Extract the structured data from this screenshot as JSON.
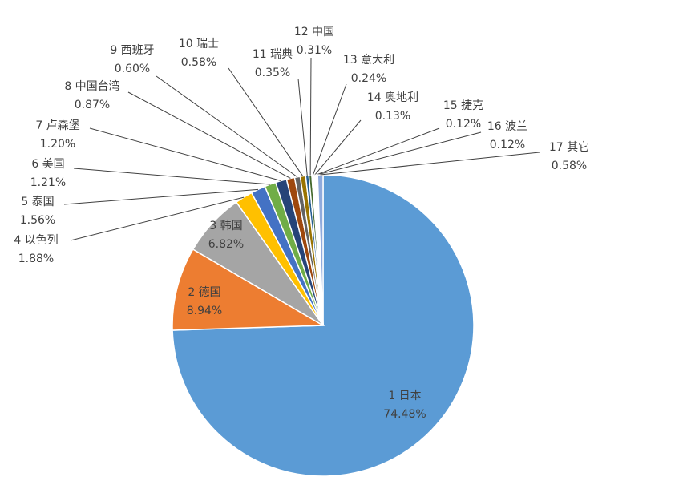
{
  "chart_data": {
    "type": "pie",
    "categories": [
      "1 日本",
      "2 德国",
      "3 韩国",
      "4 以色列",
      "5 泰国",
      "6 美国",
      "7 卢森堡",
      "8 中国台湾",
      "9 西班牙",
      "10 瑞士",
      "11 瑞典",
      "12 中国",
      "13 意大利",
      "14 奥地利",
      "15 捷克",
      "16 波兰",
      "17 其它"
    ],
    "values": [
      74.48,
      8.94,
      6.82,
      1.88,
      1.56,
      1.21,
      1.2,
      0.87,
      0.6,
      0.58,
      0.35,
      0.31,
      0.24,
      0.13,
      0.12,
      0.12,
      0.58
    ],
    "value_labels": [
      "74.48%",
      "8.94%",
      "6.82%",
      "1.88%",
      "1.56%",
      "1.21%",
      "1.20%",
      "0.87%",
      "0.60%",
      "0.58%",
      "0.35%",
      "0.31%",
      "0.24%",
      "0.13%",
      "0.12%",
      "0.12%",
      "0.58%"
    ],
    "colors": [
      "#5b9bd5",
      "#ed7d31",
      "#a5a5a5",
      "#ffc000",
      "#4472c4",
      "#70ad47",
      "#264478",
      "#9e480e",
      "#636363",
      "#997300",
      "#255e91",
      "#43682b",
      "#ffffff",
      "#ffffff",
      "#ffffff",
      "#ffffff",
      "#8faadc"
    ]
  }
}
